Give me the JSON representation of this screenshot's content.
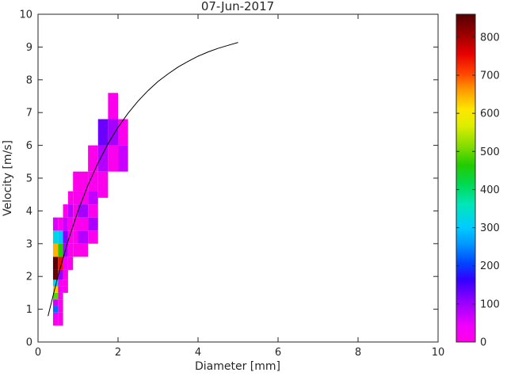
{
  "chart_data": {
    "type": "heatmap",
    "title": "07-Jun-2017",
    "xlabel": "Diameter [mm]",
    "ylabel": "Velocity [m/s]",
    "xlim": [
      0,
      10
    ],
    "ylim": [
      0,
      10
    ],
    "x_ticks": [
      0,
      2,
      4,
      6,
      8,
      10
    ],
    "y_ticks": [
      0,
      1,
      2,
      3,
      4,
      5,
      6,
      7,
      8,
      9,
      10
    ],
    "grid": false,
    "background": "#ffffff",
    "axis_color": "#262626",
    "colorbar": {
      "position": "right",
      "min": 0,
      "max": 860,
      "ticks": [
        0,
        100,
        200,
        300,
        400,
        500,
        600,
        700,
        800
      ]
    },
    "colormap_stops": [
      [
        0.0,
        "#FF00E6"
      ],
      [
        0.05,
        "#F000FF"
      ],
      [
        0.12,
        "#9900FF"
      ],
      [
        0.19,
        "#3300FF"
      ],
      [
        0.24,
        "#0044FF"
      ],
      [
        0.3,
        "#0099FF"
      ],
      [
        0.35,
        "#00CCFF"
      ],
      [
        0.42,
        "#00E6B8"
      ],
      [
        0.48,
        "#00D955"
      ],
      [
        0.54,
        "#22CC00"
      ],
      [
        0.6,
        "#88DD00"
      ],
      [
        0.66,
        "#DDEE00"
      ],
      [
        0.71,
        "#FFE600"
      ],
      [
        0.77,
        "#FF9900"
      ],
      [
        0.82,
        "#FF4400"
      ],
      [
        0.88,
        "#E60000"
      ],
      [
        0.94,
        "#990000"
      ],
      [
        1.0,
        "#550000"
      ]
    ],
    "cells_format": [
      "diameter_mm",
      "velocity_ms",
      "width_mm",
      "height_ms",
      "count"
    ],
    "cells": [
      [
        0.375,
        0.5,
        0.125,
        0.2,
        12
      ],
      [
        0.5,
        0.5,
        0.125,
        0.2,
        8
      ],
      [
        0.375,
        0.7,
        0.125,
        0.2,
        45
      ],
      [
        0.5,
        0.7,
        0.125,
        0.2,
        10
      ],
      [
        0.375,
        0.9,
        0.125,
        0.2,
        230
      ],
      [
        0.5,
        0.9,
        0.125,
        0.2,
        14
      ],
      [
        0.375,
        1.1,
        0.125,
        0.2,
        65
      ],
      [
        0.5,
        1.1,
        0.125,
        0.2,
        10
      ],
      [
        0.375,
        1.3,
        0.125,
        0.2,
        490
      ],
      [
        0.5,
        1.3,
        0.125,
        0.2,
        18
      ],
      [
        0.375,
        1.5,
        0.125,
        0.2,
        630
      ],
      [
        0.5,
        1.5,
        0.125,
        0.2,
        45
      ],
      [
        0.625,
        1.5,
        0.125,
        0.2,
        8
      ],
      [
        0.375,
        1.7,
        0.125,
        0.2,
        310
      ],
      [
        0.5,
        1.7,
        0.125,
        0.2,
        16
      ],
      [
        0.625,
        1.7,
        0.125,
        0.2,
        10
      ],
      [
        0.375,
        1.9,
        0.125,
        0.3,
        845
      ],
      [
        0.5,
        1.9,
        0.125,
        0.3,
        105
      ],
      [
        0.625,
        1.9,
        0.125,
        0.3,
        12
      ],
      [
        0.375,
        2.2,
        0.125,
        0.4,
        855
      ],
      [
        0.5,
        2.2,
        0.125,
        0.4,
        745
      ],
      [
        0.625,
        2.2,
        0.125,
        0.4,
        28
      ],
      [
        0.75,
        2.2,
        0.125,
        0.4,
        10
      ],
      [
        0.375,
        2.6,
        0.125,
        0.4,
        645
      ],
      [
        0.5,
        2.6,
        0.125,
        0.4,
        465
      ],
      [
        0.625,
        2.6,
        0.125,
        0.4,
        95
      ],
      [
        0.75,
        2.6,
        0.125,
        0.4,
        14
      ],
      [
        0.875,
        2.6,
        0.125,
        0.4,
        8
      ],
      [
        0.375,
        3.0,
        0.125,
        0.4,
        325
      ],
      [
        0.5,
        3.0,
        0.125,
        0.4,
        295
      ],
      [
        0.625,
        3.0,
        0.125,
        0.4,
        115
      ],
      [
        0.75,
        3.0,
        0.125,
        0.4,
        16
      ],
      [
        0.875,
        3.0,
        0.125,
        0.4,
        10
      ],
      [
        0.375,
        3.4,
        0.125,
        0.4,
        55
      ],
      [
        0.5,
        3.4,
        0.125,
        0.4,
        14
      ],
      [
        0.625,
        3.4,
        0.125,
        0.4,
        70
      ],
      [
        0.75,
        3.4,
        0.125,
        0.4,
        12
      ],
      [
        0.875,
        3.4,
        0.125,
        0.4,
        9
      ],
      [
        0.625,
        3.8,
        0.125,
        0.4,
        12
      ],
      [
        0.75,
        3.8,
        0.125,
        0.4,
        80
      ],
      [
        0.875,
        3.8,
        0.125,
        0.4,
        11
      ],
      [
        0.75,
        4.2,
        0.125,
        0.4,
        10
      ],
      [
        0.875,
        4.2,
        0.125,
        0.4,
        13
      ],
      [
        0.875,
        4.6,
        0.125,
        0.6,
        8
      ],
      [
        1.0,
        2.6,
        0.25,
        0.4,
        10
      ],
      [
        1.0,
        3.0,
        0.25,
        0.4,
        85
      ],
      [
        1.0,
        3.4,
        0.25,
        0.4,
        12
      ],
      [
        1.0,
        3.8,
        0.25,
        0.4,
        95
      ],
      [
        1.0,
        4.2,
        0.25,
        0.4,
        12
      ],
      [
        1.0,
        4.6,
        0.25,
        0.6,
        10
      ],
      [
        1.25,
        3.0,
        0.25,
        0.4,
        12
      ],
      [
        1.25,
        3.4,
        0.25,
        0.4,
        90
      ],
      [
        1.25,
        3.8,
        0.25,
        0.4,
        14
      ],
      [
        1.25,
        4.2,
        0.25,
        0.4,
        75
      ],
      [
        1.25,
        4.6,
        0.25,
        0.6,
        12
      ],
      [
        1.25,
        5.2,
        0.25,
        0.8,
        10
      ],
      [
        1.5,
        4.4,
        0.25,
        0.8,
        12
      ],
      [
        1.5,
        5.2,
        0.25,
        0.8,
        85
      ],
      [
        1.5,
        6.0,
        0.25,
        0.8,
        130
      ],
      [
        1.75,
        5.2,
        0.25,
        0.8,
        12
      ],
      [
        1.75,
        6.0,
        0.25,
        0.8,
        95
      ],
      [
        1.75,
        6.8,
        0.25,
        0.8,
        12
      ],
      [
        2.0,
        5.2,
        0.25,
        0.8,
        70
      ],
      [
        2.0,
        6.0,
        0.25,
        0.8,
        12
      ]
    ],
    "curve": {
      "name": "terminal-velocity-curve",
      "color": "#000000",
      "x": [
        0.25,
        0.5,
        0.75,
        1.0,
        1.25,
        1.5,
        1.75,
        2.0,
        2.25,
        2.5,
        2.75,
        3.0,
        3.25,
        3.5,
        3.75,
        4.0,
        4.25,
        4.5,
        4.75,
        5.0
      ],
      "y": [
        0.79,
        2.02,
        3.08,
        4.0,
        4.79,
        5.46,
        6.05,
        6.55,
        6.98,
        7.35,
        7.67,
        7.95,
        8.18,
        8.39,
        8.56,
        8.72,
        8.85,
        8.96,
        9.05,
        9.14
      ]
    }
  }
}
